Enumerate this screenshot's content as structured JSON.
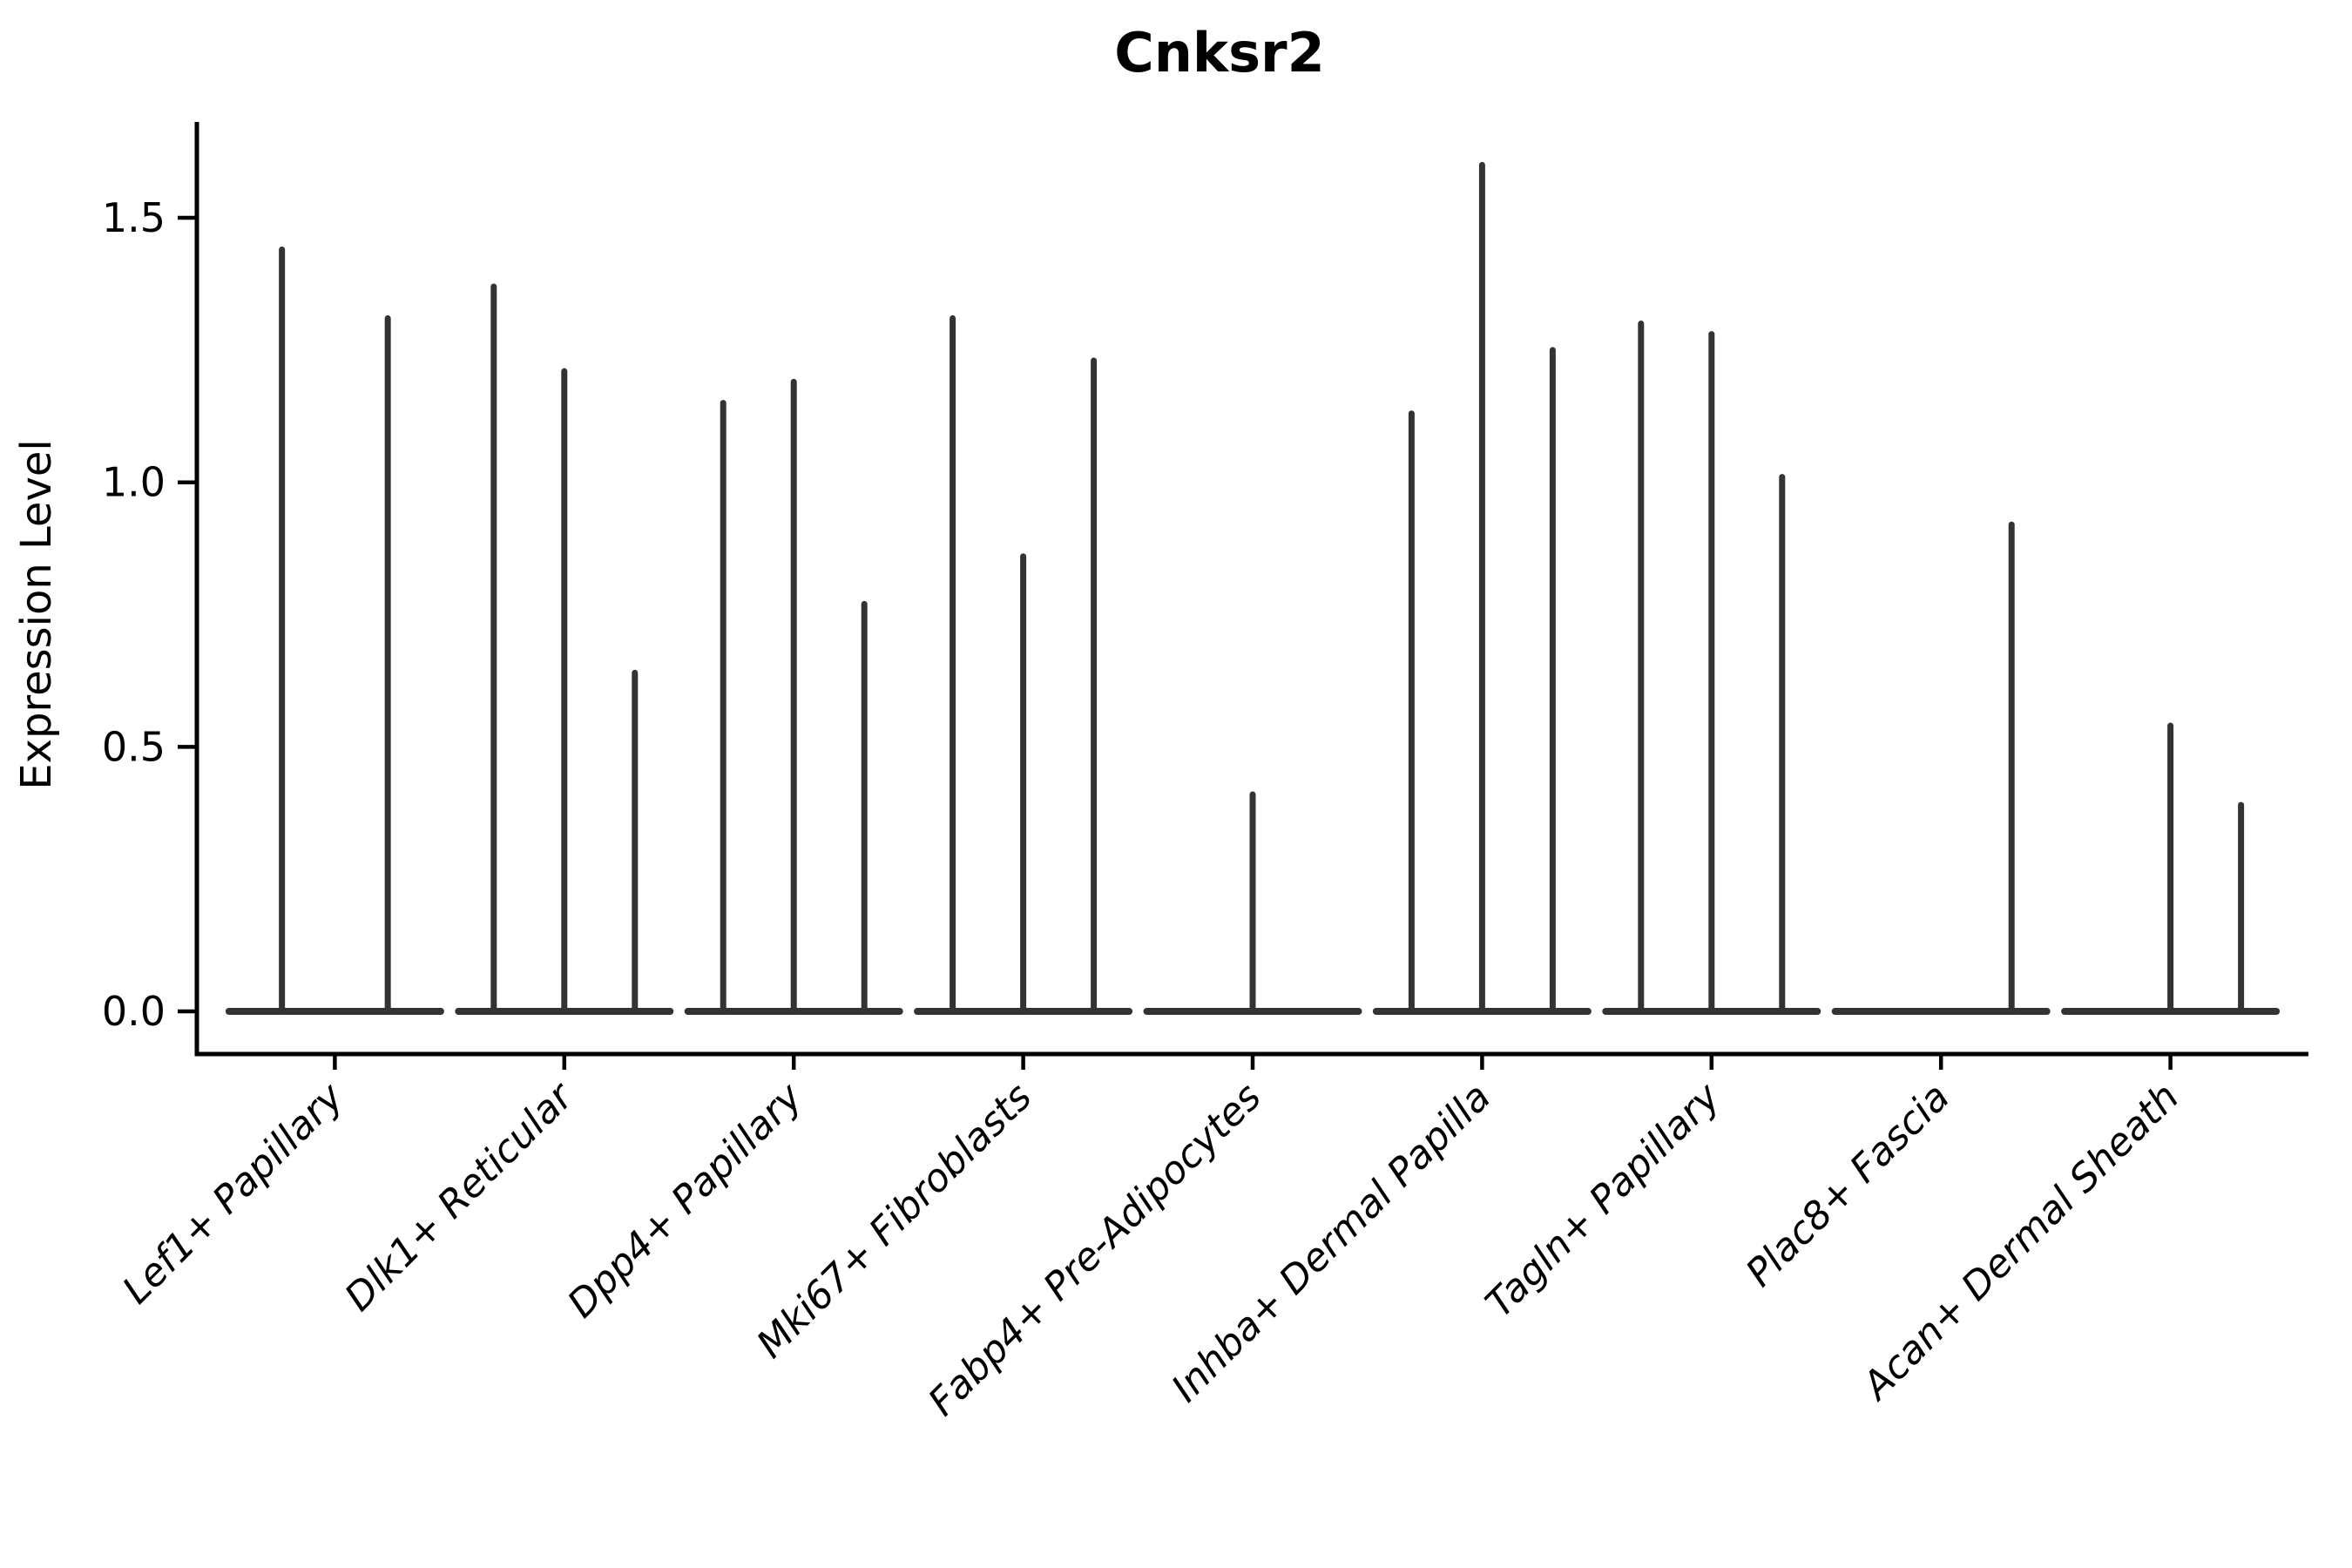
{
  "title": "Cnksr2",
  "y_axis": {
    "label": "Expression Level",
    "tick_labels": [
      "0.0",
      "0.5",
      "1.0",
      "1.5"
    ]
  },
  "x_axis": {
    "label": "",
    "tick_labels": [
      "Lef1+ Papillary",
      "Dlk1+ Reticular",
      "Dpp4+ Papillary",
      "Mki67+ Fibroblasts",
      "Fabp4+ Pre-Adipocytes",
      "Inhba+ Dermal Papilla",
      "Tagln+ Papillary",
      "Plac8+ Fascia",
      "Acan+ Dermal Sheath"
    ]
  },
  "colors": {
    "violin": "#333333",
    "axis": "#000000",
    "background": "#ffffff"
  },
  "chart_data": {
    "type": "violin",
    "title": "Cnksr2",
    "xlabel": "",
    "ylabel": "Expression Level",
    "ylim": [
      0,
      1.68
    ],
    "yticks": [
      0.0,
      0.5,
      1.0,
      1.5
    ],
    "grid": false,
    "legend_position": "none",
    "categories": [
      "Lef1+ Papillary",
      "Dlk1+ Reticular",
      "Dpp4+ Papillary",
      "Mki67+ Fibroblasts",
      "Fabp4+ Pre-Adipocytes",
      "Inhba+ Dermal Papilla",
      "Tagln+ Papillary",
      "Plac8+ Fascia",
      "Acan+ Dermal Sheath"
    ],
    "groups": [
      {
        "category": "Lef1+ Papillary",
        "violin_maxima": [
          1.44,
          1.31
        ]
      },
      {
        "category": "Dlk1+ Reticular",
        "violin_maxima": [
          1.37,
          1.21,
          0.64
        ]
      },
      {
        "category": "Dpp4+ Papillary",
        "violin_maxima": [
          1.15,
          1.19,
          0.77
        ]
      },
      {
        "category": "Mki67+ Fibroblasts",
        "violin_maxima": [
          1.31,
          0.86,
          1.23
        ]
      },
      {
        "category": "Fabp4+ Pre-Adipocytes",
        "violin_maxima": [
          0,
          0.41,
          0
        ]
      },
      {
        "category": "Inhba+ Dermal Papilla",
        "violin_maxima": [
          1.13,
          1.6,
          1.25
        ]
      },
      {
        "category": "Tagln+ Papillary",
        "violin_maxima": [
          1.3,
          1.28,
          1.01
        ]
      },
      {
        "category": "Plac8+ Fascia",
        "violin_maxima": [
          0,
          0,
          0.92
        ]
      },
      {
        "category": "Acan+ Dermal Sheath",
        "violin_maxima": [
          0,
          0.54,
          0.39
        ]
      }
    ]
  }
}
